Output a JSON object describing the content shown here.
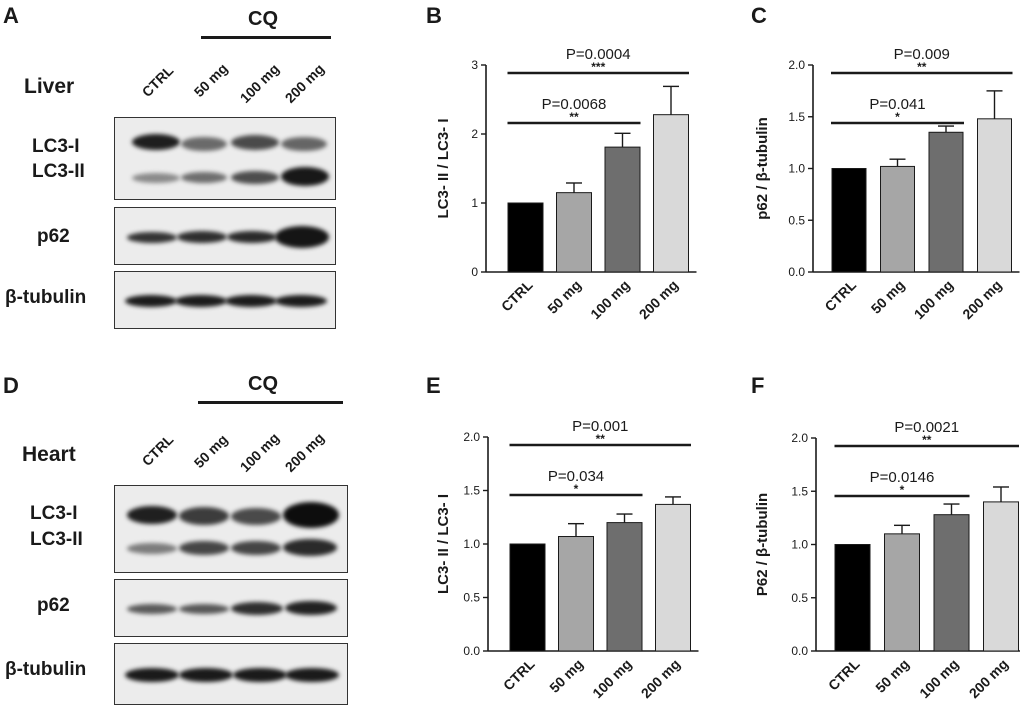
{
  "blot_panels": [
    {
      "panel_label": "A",
      "treatment": "CQ",
      "tissue": "Liver",
      "lanes": [
        "CTRL",
        "50 mg",
        "100 mg",
        "200 mg"
      ],
      "row_labels": {
        "lc3i": "LC3-I",
        "lc3ii": "LC3-II",
        "p62": "p62",
        "tubulin": "β-tubulin"
      }
    },
    {
      "panel_label": "D",
      "treatment": "CQ",
      "tissue": "Heart",
      "lanes": [
        "CTRL",
        "50 mg",
        "100 mg",
        "200 mg"
      ],
      "row_labels": {
        "lc3i": "LC3-I",
        "lc3ii": "LC3-II",
        "p62": "p62",
        "tubulin": "β-tubulin"
      }
    }
  ],
  "chart_data": [
    {
      "panel_label": "B",
      "type": "bar",
      "categories": [
        "CTRL",
        "50 mg",
        "100 mg",
        "200 mg"
      ],
      "values": [
        1.0,
        1.15,
        1.81,
        2.28
      ],
      "errors": [
        0,
        0.14,
        0.2,
        0.41
      ],
      "ylabel": "LC3- II / LC3- I",
      "ylim": [
        0,
        3
      ],
      "yticks": [
        "0",
        "1",
        "2",
        "3"
      ],
      "comparisons": [
        {
          "from": "CTRL",
          "to": "100 mg",
          "p": "P=0.0068",
          "stars": "**"
        },
        {
          "from": "CTRL",
          "to": "200 mg",
          "p": "P=0.0004",
          "stars": "***"
        }
      ],
      "colors": [
        "#000000",
        "#a6a6a6",
        "#6e6e6e",
        "#d9d9d9"
      ]
    },
    {
      "panel_label": "C",
      "type": "bar",
      "categories": [
        "CTRL",
        "50 mg",
        "100 mg",
        "200 mg"
      ],
      "values": [
        1.0,
        1.02,
        1.35,
        1.48
      ],
      "errors": [
        0,
        0.07,
        0.06,
        0.27
      ],
      "ylabel": "p62 / β-tubulin",
      "ylim": [
        0,
        2
      ],
      "yticks": [
        "0.0",
        "0.5",
        "1.0",
        "1.5",
        "2.0"
      ],
      "comparisons": [
        {
          "from": "CTRL",
          "to": "100 mg",
          "p": "P=0.041",
          "stars": "*"
        },
        {
          "from": "CTRL",
          "to": "200 mg",
          "p": "P=0.009",
          "stars": "**"
        }
      ],
      "colors": [
        "#000000",
        "#a6a6a6",
        "#6e6e6e",
        "#d9d9d9"
      ]
    },
    {
      "panel_label": "E",
      "type": "bar",
      "categories": [
        "CTRL",
        "50 mg",
        "100 mg",
        "200 mg"
      ],
      "values": [
        1.0,
        1.07,
        1.2,
        1.37
      ],
      "errors": [
        0,
        0.12,
        0.08,
        0.07
      ],
      "ylabel": "LC3- II / LC3- I",
      "ylim": [
        0,
        2
      ],
      "yticks": [
        "0.0",
        "0.5",
        "1.0",
        "1.5",
        "2.0"
      ],
      "comparisons": [
        {
          "from": "CTRL",
          "to": "100 mg",
          "p": "P=0.034",
          "stars": "*"
        },
        {
          "from": "CTRL",
          "to": "200 mg",
          "p": "P=0.001",
          "stars": "**"
        }
      ],
      "colors": [
        "#000000",
        "#a6a6a6",
        "#6e6e6e",
        "#d9d9d9"
      ]
    },
    {
      "panel_label": "F",
      "type": "bar",
      "categories": [
        "CTRL",
        "50 mg",
        "100 mg",
        "200 mg"
      ],
      "values": [
        1.0,
        1.1,
        1.28,
        1.4
      ],
      "errors": [
        0,
        0.08,
        0.1,
        0.14
      ],
      "ylabel": "P62 / β-tubulin",
      "ylim": [
        0,
        2
      ],
      "yticks": [
        "0.0",
        "0.5",
        "1.0",
        "1.5",
        "2.0"
      ],
      "comparisons": [
        {
          "from": "CTRL",
          "to": "100 mg",
          "p": "P=0.0146",
          "stars": "*"
        },
        {
          "from": "CTRL",
          "to": "200 mg",
          "p": "P=0.0021",
          "stars": "**"
        }
      ],
      "colors": [
        "#000000",
        "#a6a6a6",
        "#6e6e6e",
        "#d9d9d9"
      ]
    }
  ]
}
